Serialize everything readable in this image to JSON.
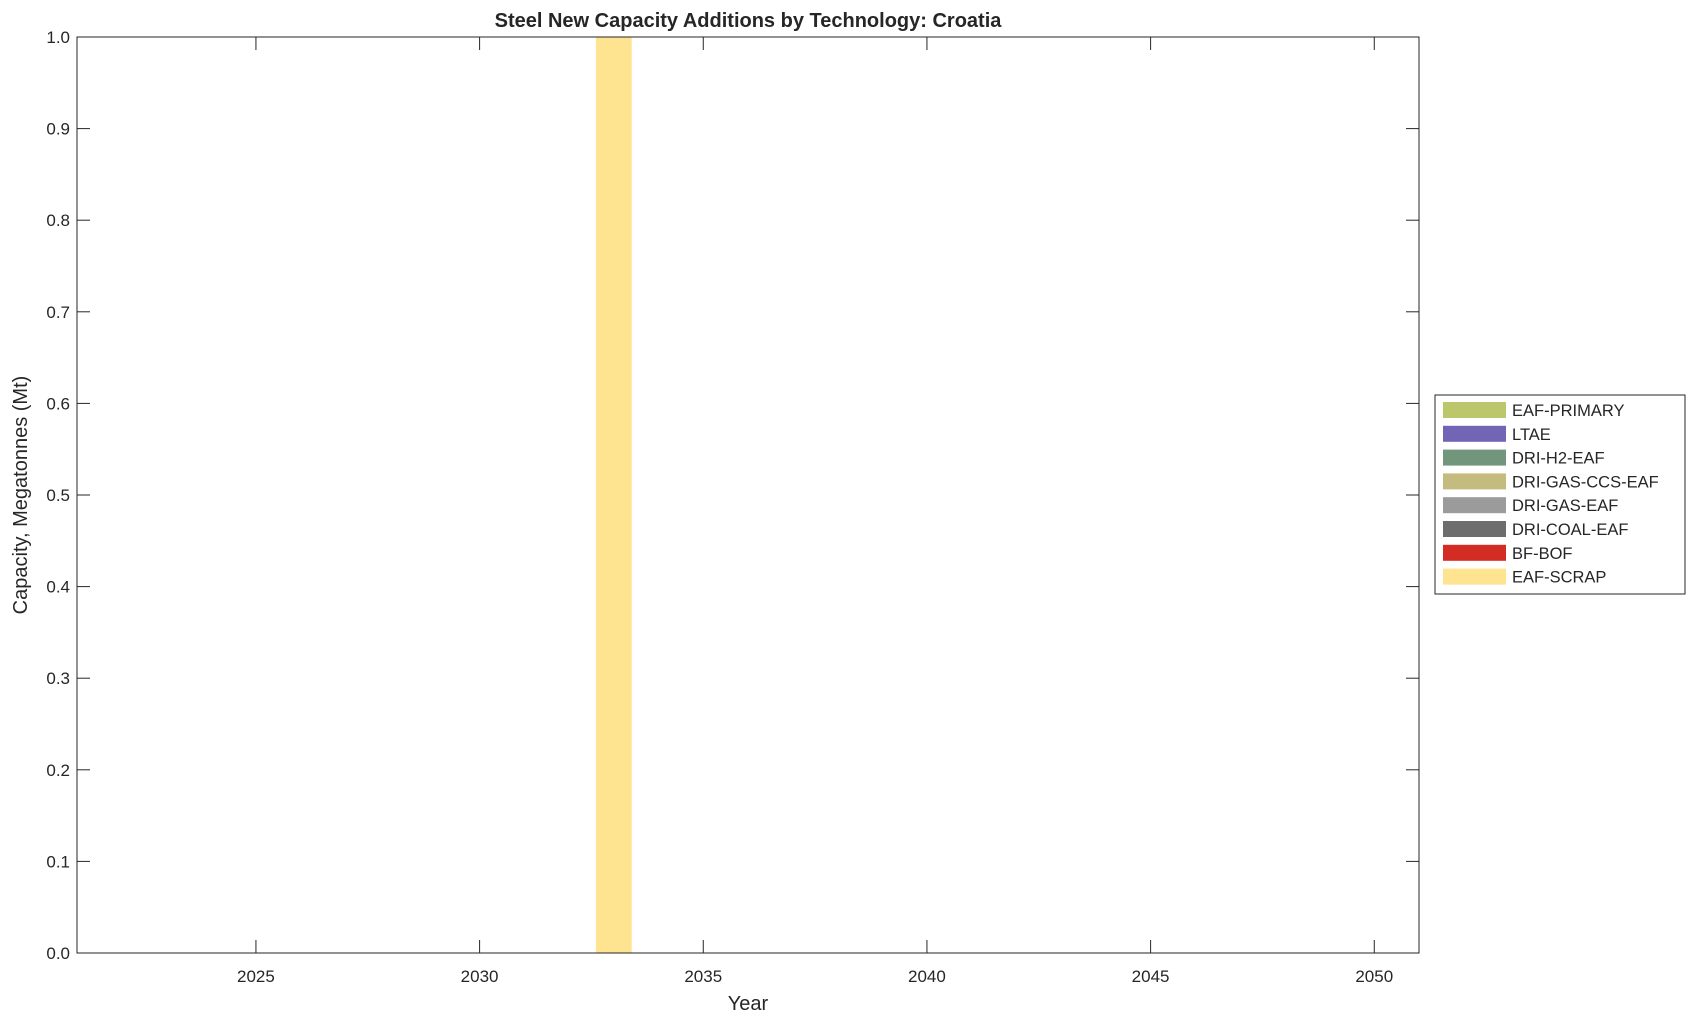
{
  "chart_data": {
    "type": "bar",
    "stacked": true,
    "title": "Steel New Capacity Additions by Technology: Croatia",
    "xlabel": "Year",
    "ylabel": "Capacity, Megatonnes (Mt)",
    "xlim": [
      2021,
      2051
    ],
    "ylim": [
      0,
      1
    ],
    "xticks": [
      2025,
      2030,
      2035,
      2040,
      2045,
      2050
    ],
    "yticks": [
      "0.0",
      "0.1",
      "0.2",
      "0.3",
      "0.4",
      "0.5",
      "0.6",
      "0.7",
      "0.8",
      "0.9",
      "1.0"
    ],
    "grid": false,
    "legend_position": "right",
    "bar_width": 0.8,
    "x": [
      2033
    ],
    "series": [
      {
        "name": "EAF-PRIMARY",
        "color": "#bcc66a",
        "values": [
          0
        ]
      },
      {
        "name": "LTAE",
        "color": "#7265b5",
        "values": [
          0
        ]
      },
      {
        "name": "DRI-H2-EAF",
        "color": "#71967b",
        "values": [
          0
        ]
      },
      {
        "name": "DRI-GAS-CCS-EAF",
        "color": "#c4bb7e",
        "values": [
          0
        ]
      },
      {
        "name": "DRI-GAS-EAF",
        "color": "#9b9b9b",
        "values": [
          0
        ]
      },
      {
        "name": "DRI-COAL-EAF",
        "color": "#6d6d6d",
        "values": [
          0
        ]
      },
      {
        "name": "BF-BOF",
        "color": "#d22c25",
        "values": [
          0
        ]
      },
      {
        "name": "EAF-SCRAP",
        "color": "#fee391",
        "values": [
          1.0
        ]
      }
    ]
  }
}
